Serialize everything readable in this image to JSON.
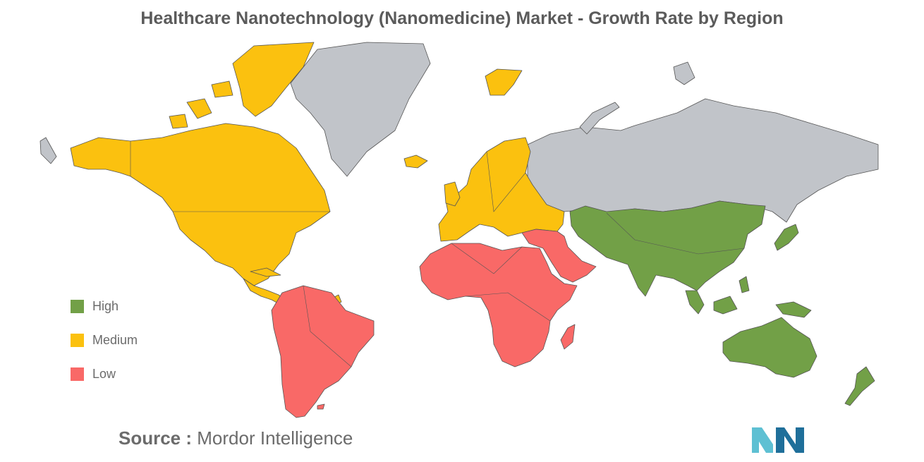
{
  "title": "Healthcare Nanotechnology (Nanomedicine) Market - Growth Rate by Region",
  "legend": [
    {
      "key": "high",
      "label": "High",
      "color": "#72a047"
    },
    {
      "key": "medium",
      "label": "Medium",
      "color": "#fbc10f"
    },
    {
      "key": "low",
      "label": "Low",
      "color": "#f96967"
    }
  ],
  "no_data_color": "#c1c4c9",
  "regions": {
    "north_america": "medium",
    "europe": "medium",
    "latin_america": "low",
    "middle_east_africa": "low",
    "asia_pacific": "high",
    "russia": "none",
    "greenland": "none"
  },
  "source": {
    "lead": "Source :",
    "text": "Mordor Intelligence"
  },
  "logo": {
    "icon": "mordor-intelligence-logo",
    "colors": [
      "#5ec0d3",
      "#1f6f9a"
    ]
  }
}
